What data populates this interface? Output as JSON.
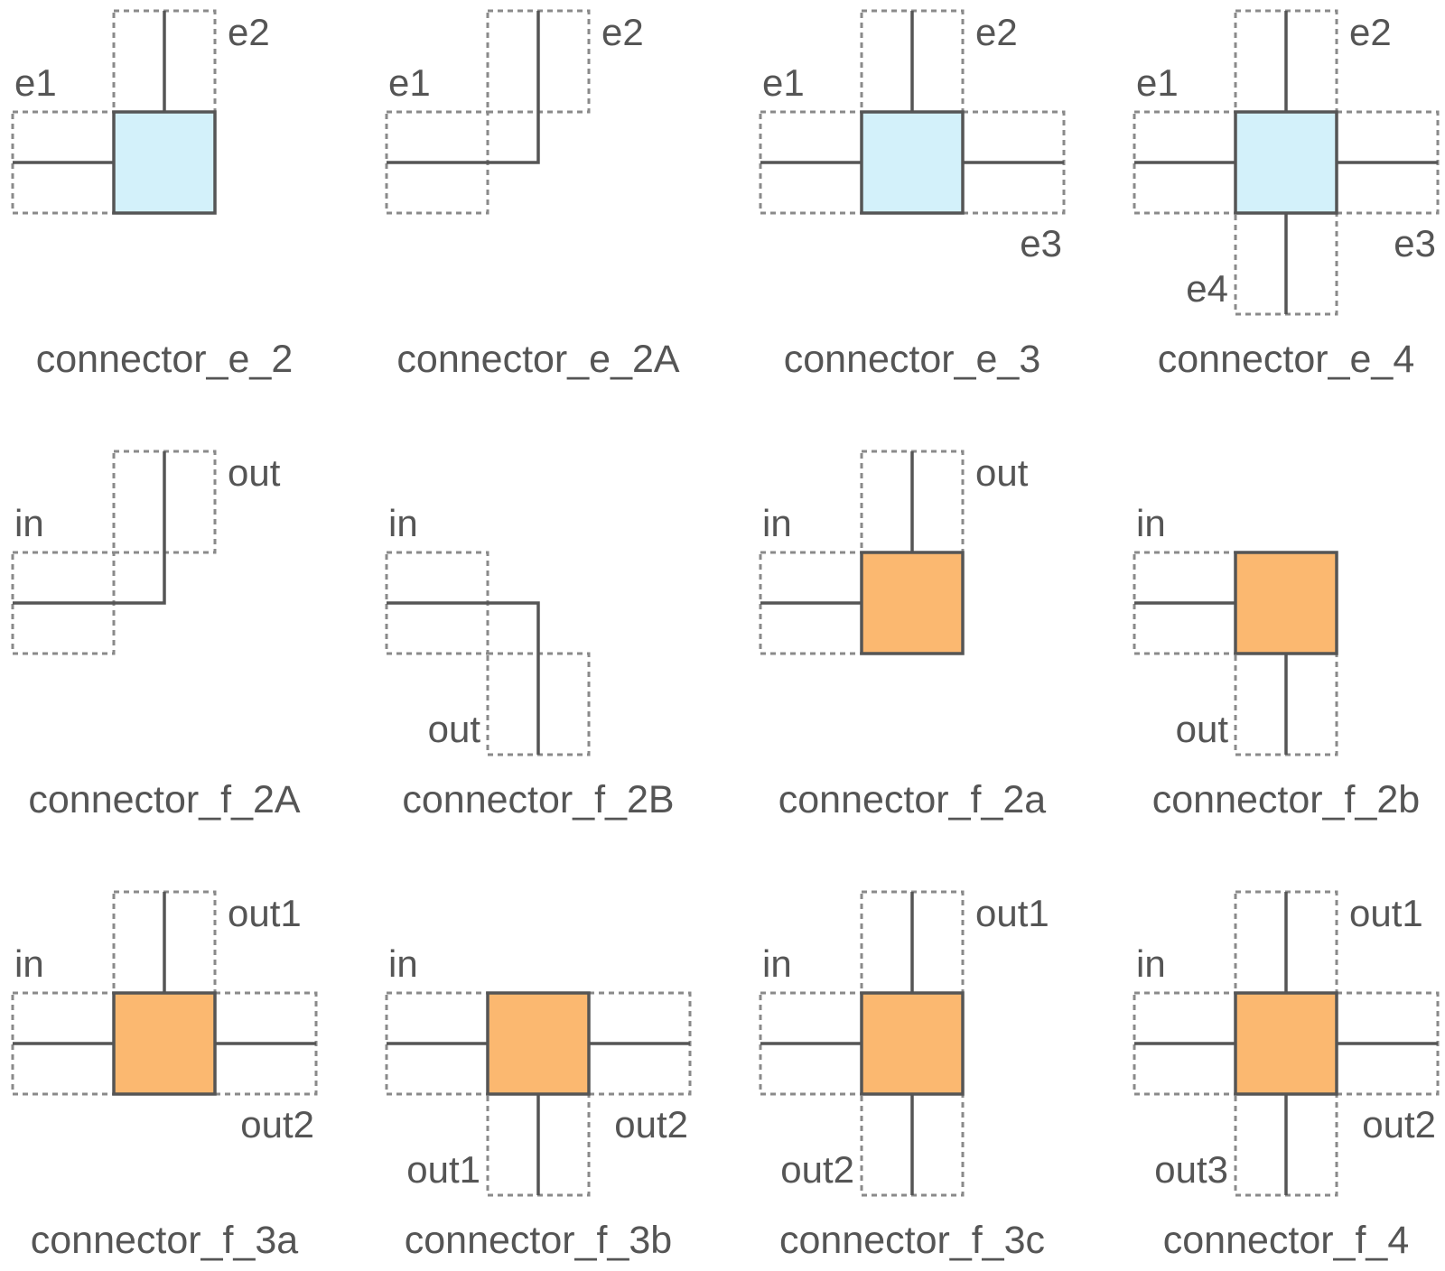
{
  "colors": {
    "wire": "#555555",
    "dashed_box": "#8a8a8a",
    "connector_e_fill": "#d3f1fa",
    "connector_f_fill": "#fbb870",
    "text": "#555555"
  },
  "connectors": [
    {
      "title": "connector_e_2",
      "node": "e",
      "ports": [
        {
          "label": "e1",
          "side": "left"
        },
        {
          "label": "e2",
          "side": "top"
        }
      ]
    },
    {
      "title": "connector_e_2A",
      "node": null,
      "ports": [
        {
          "label": "e1",
          "side": "left"
        },
        {
          "label": "e2",
          "side": "top"
        }
      ]
    },
    {
      "title": "connector_e_3",
      "node": "e",
      "ports": [
        {
          "label": "e1",
          "side": "left"
        },
        {
          "label": "e2",
          "side": "top"
        },
        {
          "label": "e3",
          "side": "right"
        }
      ]
    },
    {
      "title": "connector_e_4",
      "node": "e",
      "ports": [
        {
          "label": "e1",
          "side": "left"
        },
        {
          "label": "e2",
          "side": "top"
        },
        {
          "label": "e3",
          "side": "right"
        },
        {
          "label": "e4",
          "side": "bottom"
        }
      ]
    },
    {
      "title": "connector_f_2A",
      "node": null,
      "ports": [
        {
          "label": "in",
          "side": "left"
        },
        {
          "label": "out",
          "side": "top"
        }
      ]
    },
    {
      "title": "connector_f_2B",
      "node": null,
      "ports": [
        {
          "label": "in",
          "side": "left"
        },
        {
          "label": "out",
          "side": "bottom"
        }
      ]
    },
    {
      "title": "connector_f_2a",
      "node": "f",
      "ports": [
        {
          "label": "in",
          "side": "left"
        },
        {
          "label": "out",
          "side": "top"
        }
      ]
    },
    {
      "title": "connector_f_2b",
      "node": "f",
      "ports": [
        {
          "label": "in",
          "side": "left"
        },
        {
          "label": "out",
          "side": "bottom"
        }
      ]
    },
    {
      "title": "connector_f_3a",
      "node": "f",
      "ports": [
        {
          "label": "in",
          "side": "left"
        },
        {
          "label": "out1",
          "side": "top"
        },
        {
          "label": "out2",
          "side": "right"
        }
      ]
    },
    {
      "title": "connector_f_3b",
      "node": "f",
      "ports": [
        {
          "label": "in",
          "side": "left"
        },
        {
          "label": "out1",
          "side": "bottom"
        },
        {
          "label": "out2",
          "side": "right"
        }
      ]
    },
    {
      "title": "connector_f_3c",
      "node": "f",
      "ports": [
        {
          "label": "in",
          "side": "left"
        },
        {
          "label": "out1",
          "side": "top"
        },
        {
          "label": "out2",
          "side": "bottom"
        }
      ]
    },
    {
      "title": "connector_f_4",
      "node": "f",
      "ports": [
        {
          "label": "in",
          "side": "left"
        },
        {
          "label": "out1",
          "side": "top"
        },
        {
          "label": "out2",
          "side": "right"
        },
        {
          "label": "out3",
          "side": "bottom"
        }
      ]
    }
  ]
}
